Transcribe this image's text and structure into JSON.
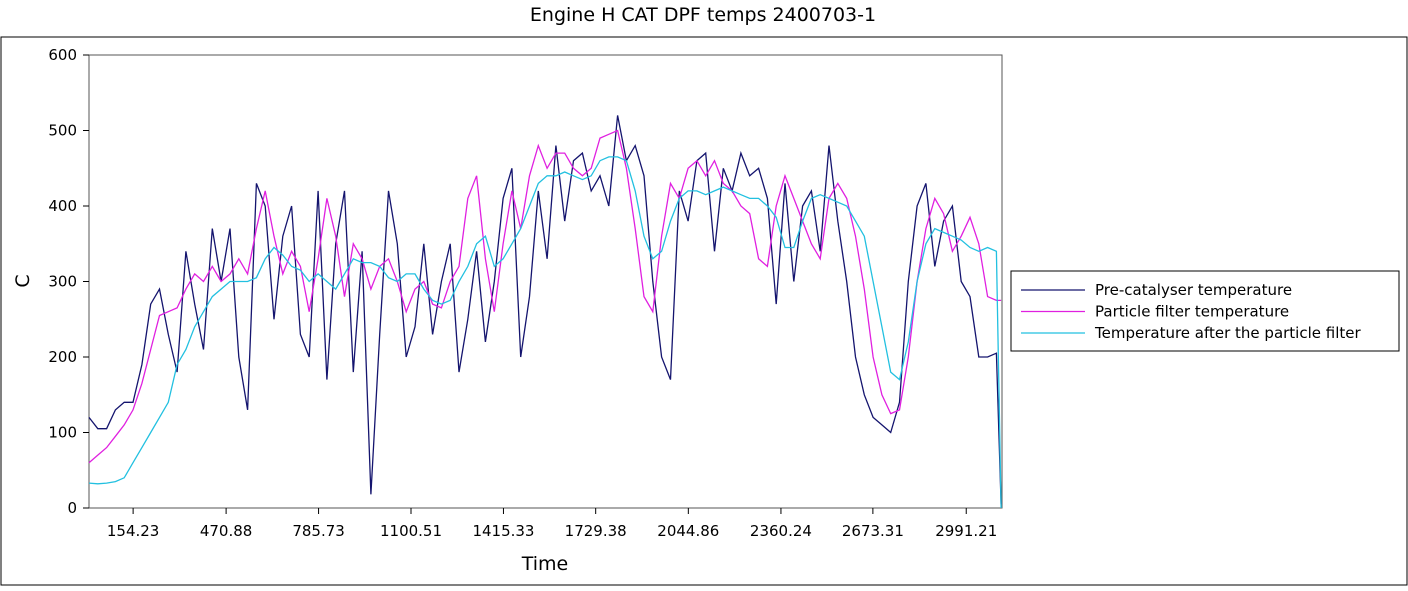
{
  "chart_data": {
    "type": "line",
    "title": "Engine H   CAT DPF temps 2400703-1",
    "xlabel": "Time",
    "ylabel": "C",
    "xlim": [
      4,
      3113
    ],
    "ylim": [
      0,
      600
    ],
    "xticks": [
      154.23,
      470.88,
      785.73,
      1100.51,
      1415.33,
      1729.38,
      2044.86,
      2360.24,
      2673.31,
      2991.21
    ],
    "yticks": [
      0,
      100,
      200,
      300,
      400,
      500,
      600
    ],
    "legend": "right",
    "x": [
      4,
      34,
      64,
      94,
      124,
      154,
      184,
      214,
      244,
      274,
      304,
      334,
      364,
      394,
      424,
      454,
      484,
      514,
      544,
      574,
      604,
      634,
      664,
      694,
      724,
      754,
      784,
      814,
      844,
      874,
      904,
      934,
      964,
      994,
      1024,
      1054,
      1084,
      1114,
      1144,
      1174,
      1204,
      1234,
      1264,
      1294,
      1324,
      1354,
      1384,
      1414,
      1444,
      1474,
      1504,
      1534,
      1564,
      1594,
      1624,
      1654,
      1684,
      1714,
      1744,
      1774,
      1804,
      1834,
      1864,
      1894,
      1924,
      1954,
      1984,
      2014,
      2044,
      2074,
      2104,
      2134,
      2164,
      2194,
      2224,
      2254,
      2284,
      2314,
      2344,
      2374,
      2404,
      2434,
      2464,
      2494,
      2524,
      2554,
      2584,
      2614,
      2644,
      2674,
      2704,
      2734,
      2764,
      2794,
      2824,
      2854,
      2884,
      2914,
      2944,
      2974,
      3004,
      3034,
      3064,
      3094,
      3110
    ],
    "series": [
      {
        "name": "Pre-catalyser temperature",
        "color": "#14146e",
        "values": [
          120,
          105,
          105,
          130,
          140,
          140,
          190,
          270,
          290,
          230,
          180,
          340,
          270,
          210,
          370,
          300,
          370,
          200,
          130,
          430,
          400,
          250,
          360,
          400,
          230,
          200,
          420,
          170,
          350,
          420,
          180,
          340,
          18,
          230,
          420,
          350,
          200,
          240,
          350,
          230,
          300,
          350,
          180,
          250,
          340,
          220,
          300,
          410,
          450,
          200,
          280,
          420,
          330,
          480,
          380,
          460,
          470,
          420,
          440,
          400,
          520,
          460,
          480,
          440,
          300,
          200,
          170,
          420,
          380,
          460,
          470,
          340,
          450,
          420,
          470,
          440,
          450,
          410,
          270,
          430,
          300,
          400,
          420,
          340,
          480,
          380,
          300,
          200,
          150,
          120,
          110,
          100,
          140,
          300,
          400,
          430,
          320,
          380,
          400,
          300,
          280,
          200,
          200,
          205,
          5
        ]
      },
      {
        "name": "Particle filter temperature",
        "color": "#e020e0",
        "values": [
          60,
          70,
          80,
          95,
          110,
          130,
          165,
          210,
          255,
          260,
          265,
          290,
          310,
          300,
          320,
          300,
          310,
          330,
          310,
          370,
          420,
          360,
          310,
          340,
          320,
          260,
          330,
          410,
          360,
          280,
          350,
          330,
          290,
          320,
          330,
          300,
          260,
          290,
          300,
          270,
          265,
          300,
          320,
          410,
          440,
          330,
          260,
          350,
          420,
          370,
          440,
          480,
          450,
          470,
          470,
          450,
          440,
          450,
          490,
          495,
          500,
          450,
          370,
          280,
          260,
          360,
          430,
          410,
          450,
          460,
          440,
          460,
          430,
          420,
          400,
          390,
          330,
          320,
          400,
          440,
          410,
          380,
          350,
          330,
          410,
          430,
          410,
          360,
          290,
          200,
          150,
          125,
          130,
          200,
          300,
          370,
          410,
          390,
          340,
          360,
          385,
          350,
          280,
          275,
          275
        ]
      },
      {
        "name": "Temperature after the particle filter",
        "color": "#22c0e0",
        "values": [
          33,
          32,
          33,
          35,
          40,
          60,
          80,
          100,
          120,
          140,
          190,
          210,
          240,
          260,
          280,
          290,
          300,
          300,
          300,
          305,
          330,
          345,
          335,
          320,
          315,
          300,
          310,
          300,
          290,
          310,
          330,
          325,
          325,
          320,
          305,
          300,
          310,
          310,
          290,
          275,
          270,
          275,
          300,
          320,
          350,
          360,
          320,
          330,
          350,
          370,
          400,
          430,
          440,
          440,
          445,
          440,
          435,
          440,
          460,
          465,
          465,
          460,
          420,
          360,
          330,
          340,
          380,
          410,
          420,
          420,
          415,
          420,
          425,
          420,
          415,
          410,
          410,
          400,
          385,
          345,
          345,
          380,
          410,
          415,
          410,
          405,
          400,
          380,
          360,
          300,
          240,
          180,
          170,
          220,
          300,
          350,
          370,
          365,
          360,
          355,
          345,
          340,
          345,
          340,
          0
        ]
      }
    ]
  }
}
